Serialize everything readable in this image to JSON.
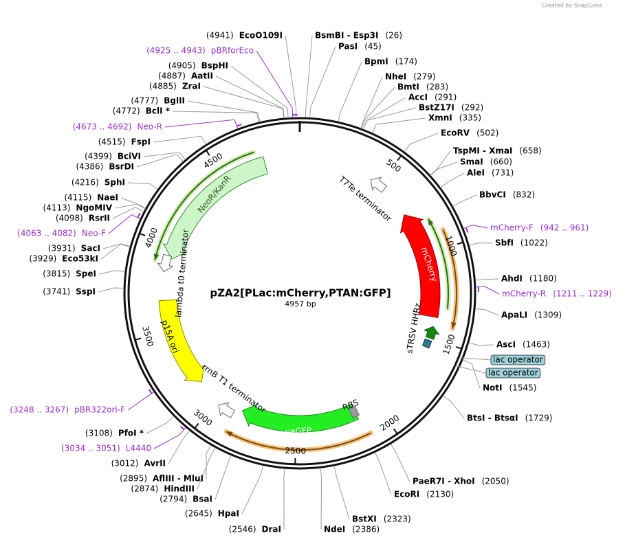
{
  "credit": "Created by SnapGene",
  "title": "pZA2[PLac:mCherry,PTAN:GFP]",
  "length": "4957 bp",
  "ticks": [
    500,
    1000,
    1500,
    2000,
    2500,
    3000,
    3500,
    4000,
    4500
  ],
  "sites": [
    {
      "name": "BsmBI - Esp3I",
      "pos": "(26)"
    },
    {
      "name": "PasI",
      "pos": "(45)"
    },
    {
      "name": "BpmI",
      "pos": "(174)"
    },
    {
      "name": "NheI",
      "pos": "(279)"
    },
    {
      "name": "BmtI",
      "pos": "(283)"
    },
    {
      "name": "AccI",
      "pos": "(291)"
    },
    {
      "name": "BstZ17I",
      "pos": "(292)"
    },
    {
      "name": "XmnI",
      "pos": "(335)"
    },
    {
      "name": "EcoRV",
      "pos": "(502)"
    },
    {
      "name": "TspMI - XmaI",
      "pos": "(658)"
    },
    {
      "name": "SmaI",
      "pos": "(660)"
    },
    {
      "name": "AleI",
      "pos": "(731)"
    },
    {
      "name": "BbvCI",
      "pos": "(832)"
    },
    {
      "name": "SbfI",
      "pos": "(1022)"
    },
    {
      "name": "AhdI",
      "pos": "(1180)"
    },
    {
      "name": "ApaLI",
      "pos": "(1309)"
    },
    {
      "name": "AscI",
      "pos": "(1463)"
    },
    {
      "name": "NotI",
      "pos": "(1545)"
    },
    {
      "name": "BtsI - BtsαI",
      "pos": "(1729)"
    },
    {
      "name": "PaeR7I - XhoI",
      "pos": "(2050)"
    },
    {
      "name": "EcoRI",
      "pos": "(2130)"
    },
    {
      "name": "BstXI",
      "pos": "(2323)"
    },
    {
      "name": "NdeI",
      "pos": "(2386)"
    },
    {
      "name": "DraI",
      "pos": "(2546)"
    },
    {
      "name": "HpaI",
      "pos": "(2645)"
    },
    {
      "name": "BsaI",
      "pos": "(2794)"
    },
    {
      "name": "HindIII",
      "pos": "(2874)"
    },
    {
      "name": "AflIII - MluI",
      "pos": "(2895)"
    },
    {
      "name": "AvrII",
      "pos": "(3012)"
    },
    {
      "name": "PfoI *",
      "pos": "(3108)"
    },
    {
      "name": "SspI",
      "pos": "(3741)"
    },
    {
      "name": "SpeI",
      "pos": "(3815)"
    },
    {
      "name": "Eco53kI",
      "pos": "(3929)"
    },
    {
      "name": "SacI",
      "pos": "(3931)"
    },
    {
      "name": "RsrII",
      "pos": "(4098)"
    },
    {
      "name": "NgoMIV",
      "pos": "(4113)"
    },
    {
      "name": "NaeI",
      "pos": "(4115)"
    },
    {
      "name": "SphI",
      "pos": "(4216)"
    },
    {
      "name": "BsrDI",
      "pos": "(4386)"
    },
    {
      "name": "BciVI",
      "pos": "(4399)"
    },
    {
      "name": "FspI",
      "pos": "(4515)"
    },
    {
      "name": "BclI *",
      "pos": "(4772)"
    },
    {
      "name": "BglII",
      "pos": "(4777)"
    },
    {
      "name": "ZraI",
      "pos": "(4885)"
    },
    {
      "name": "AatII",
      "pos": "(4887)"
    },
    {
      "name": "BspHI",
      "pos": "(4905)"
    },
    {
      "name": "EcoO109I",
      "pos": "(4941)"
    }
  ],
  "primers": [
    {
      "name": "pBRforEco",
      "range": "(4925 .. 4943)"
    },
    {
      "name": "mCherry-F",
      "range": "(942 .. 961)"
    },
    {
      "name": "mCherry-R",
      "range": "(1211 .. 1229)"
    },
    {
      "name": "L4440",
      "range": "(3034 .. 3051)"
    },
    {
      "name": "pBR322ori-F",
      "range": "(3248 .. 3267)"
    },
    {
      "name": "Neo-F",
      "range": "(4063 .. 4082)"
    },
    {
      "name": "Neo-R",
      "range": "(4673 .. 4692)"
    }
  ],
  "features": [
    "NeoR/KanR",
    "lambda t0 terminator",
    "p15A ori",
    "rrnB T1 terminator",
    "yeGFP",
    "RBS",
    "T7Te terminator",
    "mCherry",
    "sTRSV HHRz",
    "lac operator",
    "lac operator"
  ]
}
